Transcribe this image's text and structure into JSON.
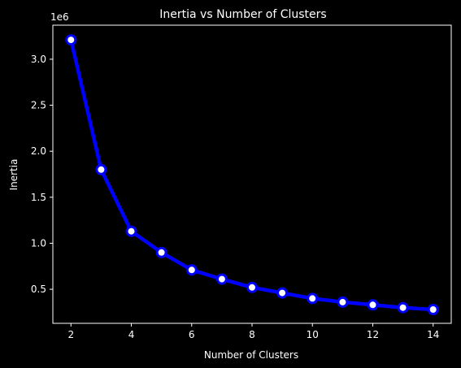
{
  "chart_data": {
    "type": "line",
    "title": "Inertia vs Number of Clusters",
    "xlabel": "Number of Clusters",
    "ylabel": "Inertia",
    "offset_label": "1e6",
    "xlim": [
      1.4,
      14.6
    ],
    "ylim": [
      0.13,
      3.37
    ],
    "x_ticks": [
      2,
      4,
      6,
      8,
      10,
      12,
      14
    ],
    "x_tick_labels": [
      "2",
      "4",
      "6",
      "8",
      "10",
      "12",
      "14"
    ],
    "y_ticks": [
      0.5,
      1.0,
      1.5,
      2.0,
      2.5,
      3.0
    ],
    "y_tick_labels": [
      "0.5",
      "1.0",
      "1.5",
      "2.0",
      "2.5",
      "3.0"
    ],
    "grid": false,
    "series": [
      {
        "name": "Inertia",
        "x": [
          2,
          3,
          4,
          5,
          6,
          7,
          8,
          9,
          10,
          11,
          12,
          13,
          14
        ],
        "values": [
          3.21,
          1.8,
          1.13,
          0.9,
          0.71,
          0.61,
          0.52,
          0.46,
          0.4,
          0.36,
          0.33,
          0.3,
          0.28
        ]
      }
    ],
    "colors": {
      "background": "#000000",
      "line": "#0000ff",
      "marker_fill": "#ffffff",
      "text": "#ffffff",
      "axes": "#ffffff"
    }
  }
}
